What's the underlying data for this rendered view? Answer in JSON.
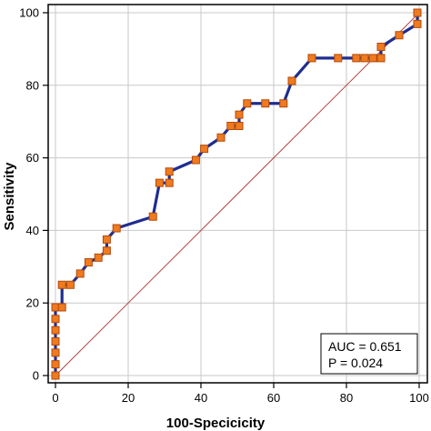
{
  "chart_data": {
    "type": "line",
    "xlabel": "100-Specicicity",
    "ylabel": "Sensitivity",
    "xlim": [
      0,
      100
    ],
    "ylim": [
      0,
      100
    ],
    "xticks": [
      "0",
      "20",
      "40",
      "60",
      "80",
      "100"
    ],
    "yticks": [
      "0",
      "20",
      "40",
      "60",
      "80",
      "100"
    ],
    "grid": true,
    "diagonal_reference": true,
    "colors": {
      "roc_line": "#1f2d8f",
      "marker_fill": "#f07a1e",
      "marker_edge": "#b04a0c",
      "diagonal": "#b44444",
      "grid": "#c8c8c8"
    },
    "annotations": {
      "auc": "AUC = 0.651",
      "p": "P = 0.024"
    },
    "series": [
      {
        "points": [
          [
            0,
            0
          ],
          [
            0,
            3.1
          ],
          [
            0,
            6.3
          ],
          [
            0,
            9.4
          ],
          [
            0,
            12.5
          ],
          [
            0,
            15.6
          ],
          [
            0,
            18.8
          ],
          [
            1.8,
            18.8
          ],
          [
            1.8,
            25.0
          ],
          [
            4.1,
            25.0
          ],
          [
            6.8,
            28.1
          ],
          [
            9.1,
            31.2
          ],
          [
            11.8,
            32.5
          ],
          [
            14.1,
            34.4
          ],
          [
            14.1,
            37.5
          ],
          [
            16.8,
            40.6
          ],
          [
            26.8,
            43.8
          ],
          [
            28.6,
            53.1
          ],
          [
            31.3,
            53.1
          ],
          [
            31.3,
            56.2
          ],
          [
            38.6,
            59.4
          ],
          [
            40.9,
            62.5
          ],
          [
            45.5,
            65.6
          ],
          [
            48.2,
            68.8
          ],
          [
            50.5,
            68.8
          ],
          [
            50.5,
            71.9
          ],
          [
            52.7,
            75.0
          ],
          [
            57.7,
            75.0
          ],
          [
            62.7,
            75.0
          ],
          [
            65.0,
            81.2
          ],
          [
            70.5,
            87.5
          ],
          [
            77.7,
            87.5
          ],
          [
            82.7,
            87.5
          ],
          [
            85.0,
            87.5
          ],
          [
            87.3,
            87.5
          ],
          [
            89.5,
            87.5
          ],
          [
            89.5,
            90.6
          ],
          [
            94.5,
            93.8
          ],
          [
            99.5,
            96.9
          ],
          [
            99.5,
            100
          ]
        ]
      }
    ]
  }
}
